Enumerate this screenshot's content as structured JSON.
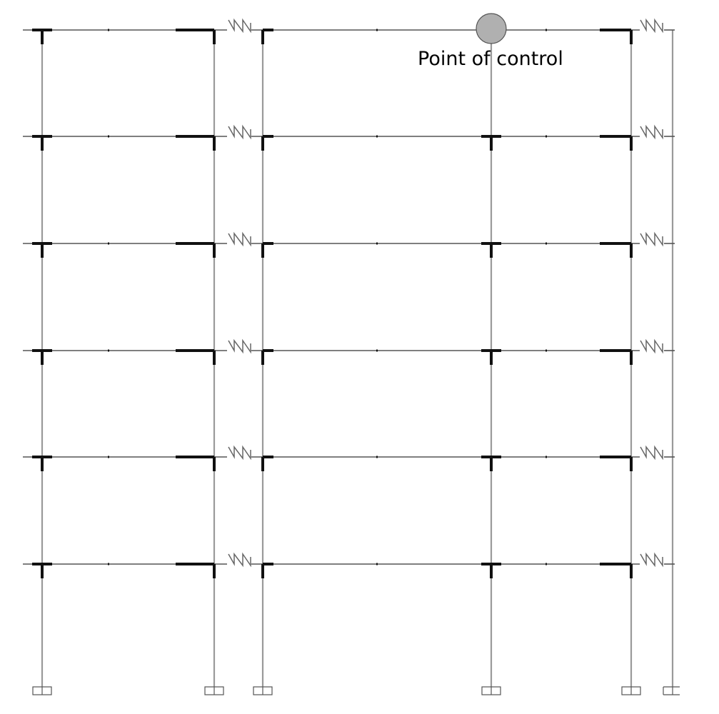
{
  "annotation": {
    "label": "Point of control"
  },
  "structure": {
    "floors": 6,
    "frame_bays": 2,
    "colors": {
      "beam": "#555555",
      "column": "#9a9a9a",
      "joint": "#111111",
      "spring": "#666666",
      "control_fill": "#b0b0b0",
      "control_stroke": "#555555",
      "support": "#555555"
    }
  }
}
